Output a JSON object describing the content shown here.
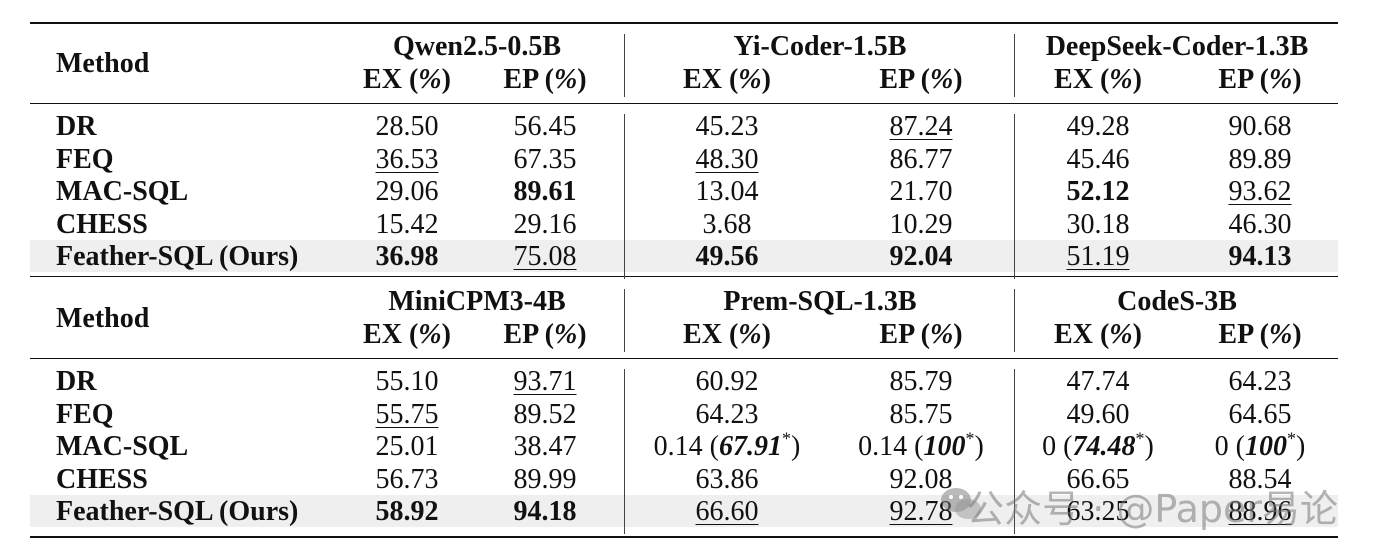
{
  "table": {
    "method_label": "Method",
    "ex_label": "EX (%)",
    "ep_label": "EP (%)",
    "panels": [
      {
        "models": [
          "Qwen2.5-0.5B",
          "Yi-Coder-1.5B",
          "DeepSeek-Coder-1.3B"
        ],
        "rows": [
          {
            "method": "DR",
            "cells": [
              {
                "v": "28.50",
                "s": "plain"
              },
              {
                "v": "56.45",
                "s": "plain"
              },
              {
                "v": "45.23",
                "s": "plain"
              },
              {
                "v": "87.24",
                "s": "underline"
              },
              {
                "v": "49.28",
                "s": "plain"
              },
              {
                "v": "90.68",
                "s": "plain"
              }
            ]
          },
          {
            "method": "FEQ",
            "cells": [
              {
                "v": "36.53",
                "s": "underline"
              },
              {
                "v": "67.35",
                "s": "plain"
              },
              {
                "v": "48.30",
                "s": "underline"
              },
              {
                "v": "86.77",
                "s": "plain"
              },
              {
                "v": "45.46",
                "s": "plain"
              },
              {
                "v": "89.89",
                "s": "plain"
              }
            ]
          },
          {
            "method": "MAC-SQL",
            "cells": [
              {
                "v": "29.06",
                "s": "plain"
              },
              {
                "v": "89.61",
                "s": "bold"
              },
              {
                "v": "13.04",
                "s": "plain"
              },
              {
                "v": "21.70",
                "s": "plain"
              },
              {
                "v": "52.12",
                "s": "bold"
              },
              {
                "v": "93.62",
                "s": "underline"
              }
            ]
          },
          {
            "method": "CHESS",
            "cells": [
              {
                "v": "15.42",
                "s": "plain"
              },
              {
                "v": "29.16",
                "s": "plain"
              },
              {
                "v": "3.68",
                "s": "plain"
              },
              {
                "v": "10.29",
                "s": "plain"
              },
              {
                "v": "30.18",
                "s": "plain"
              },
              {
                "v": "46.30",
                "s": "plain"
              }
            ]
          },
          {
            "method": "Feather-SQL (Ours)",
            "cells": [
              {
                "v": "36.98",
                "s": "bold"
              },
              {
                "v": "75.08",
                "s": "underline"
              },
              {
                "v": "49.56",
                "s": "bold"
              },
              {
                "v": "92.04",
                "s": "bold"
              },
              {
                "v": "51.19",
                "s": "underline"
              },
              {
                "v": "94.13",
                "s": "bold"
              }
            ]
          }
        ]
      },
      {
        "models": [
          "MiniCPM3-4B",
          "Prem-SQL-1.3B",
          "CodeS-3B"
        ],
        "rows": [
          {
            "method": "DR",
            "cells": [
              {
                "v": "55.10",
                "s": "plain"
              },
              {
                "v": "93.71",
                "s": "underline"
              },
              {
                "v": "60.92",
                "s": "plain"
              },
              {
                "v": "85.79",
                "s": "plain"
              },
              {
                "v": "47.74",
                "s": "plain"
              },
              {
                "v": "64.23",
                "s": "plain"
              }
            ]
          },
          {
            "method": "FEQ",
            "cells": [
              {
                "v": "55.75",
                "s": "underline"
              },
              {
                "v": "89.52",
                "s": "plain"
              },
              {
                "v": "64.23",
                "s": "plain"
              },
              {
                "v": "85.75",
                "s": "plain"
              },
              {
                "v": "49.60",
                "s": "plain"
              },
              {
                "v": "64.65",
                "s": "plain"
              }
            ]
          },
          {
            "method": "MAC-SQL",
            "cells": [
              {
                "v": "25.01",
                "s": "plain"
              },
              {
                "v": "38.47",
                "s": "plain"
              },
              {
                "v": "0.14",
                "s": "plain",
                "paren": "67.91",
                "star": "*"
              },
              {
                "v": "0.14",
                "s": "plain",
                "paren": "100",
                "star": "*"
              },
              {
                "v": "0",
                "s": "plain",
                "paren": "74.48",
                "star": "*"
              },
              {
                "v": "0",
                "s": "plain",
                "paren": "100",
                "star": "*"
              }
            ]
          },
          {
            "method": "CHESS",
            "cells": [
              {
                "v": "56.73",
                "s": "plain"
              },
              {
                "v": "89.99",
                "s": "plain"
              },
              {
                "v": "63.86",
                "s": "plain"
              },
              {
                "v": "92.08",
                "s": "plain"
              },
              {
                "v": "66.65",
                "s": "plain"
              },
              {
                "v": "88.54",
                "s": "plain"
              }
            ]
          },
          {
            "method": "Feather-SQL (Ours)",
            "cells": [
              {
                "v": "58.92",
                "s": "bold"
              },
              {
                "v": "94.18",
                "s": "bold"
              },
              {
                "v": "66.60",
                "s": "underline"
              },
              {
                "v": "92.78",
                "s": "underline"
              },
              {
                "v": "63.25",
                "s": "plain"
              },
              {
                "v": "88.96",
                "s": "underline"
              }
            ]
          }
        ]
      }
    ]
  },
  "watermark": {
    "text": "公众号 · @Paper易论",
    "icon": "wechat-icon"
  }
}
